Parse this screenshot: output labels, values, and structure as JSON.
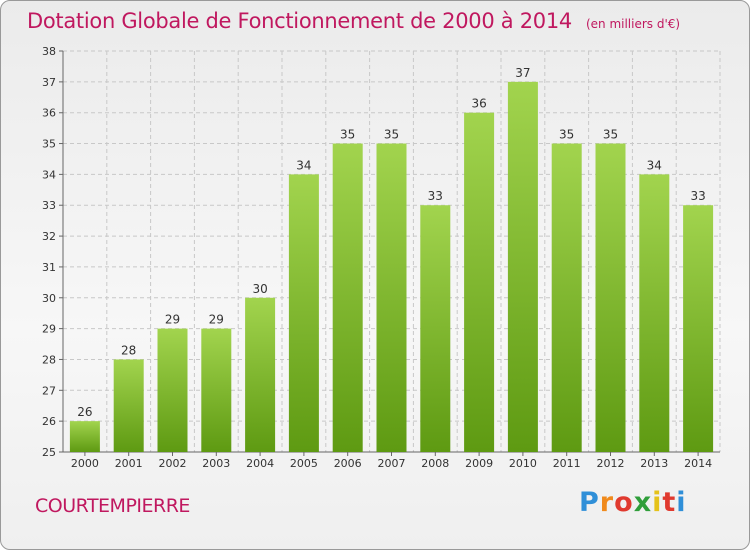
{
  "header": {
    "title": "Dotation Globale de Fonctionnement de 2000 à 2014",
    "subtitle": "(en milliers d'€)"
  },
  "footer": {
    "commune": "COURTEMPIERRE",
    "logo": "Proxiti"
  },
  "colors": {
    "title": "#c0185f",
    "bar_light": "#a2d44e",
    "bar_dark": "#5e9a12",
    "grid": "#c8c8c8"
  },
  "chart_data": {
    "type": "bar",
    "title": "Dotation Globale de Fonctionnement de 2000 à 2014",
    "subtitle": "(en milliers d'€)",
    "xlabel": "",
    "ylabel": "",
    "categories": [
      "2000",
      "2001",
      "2002",
      "2003",
      "2004",
      "2005",
      "2006",
      "2007",
      "2008",
      "2009",
      "2010",
      "2011",
      "2012",
      "2013",
      "2014"
    ],
    "values": [
      26,
      28,
      29,
      29,
      30,
      34,
      35,
      35,
      33,
      36,
      37,
      35,
      35,
      34,
      33
    ],
    "ylim": [
      25,
      38
    ],
    "yticks": [
      25,
      26,
      27,
      28,
      29,
      30,
      31,
      32,
      33,
      34,
      35,
      36,
      37,
      38
    ],
    "grid": true,
    "data_labels": true
  }
}
